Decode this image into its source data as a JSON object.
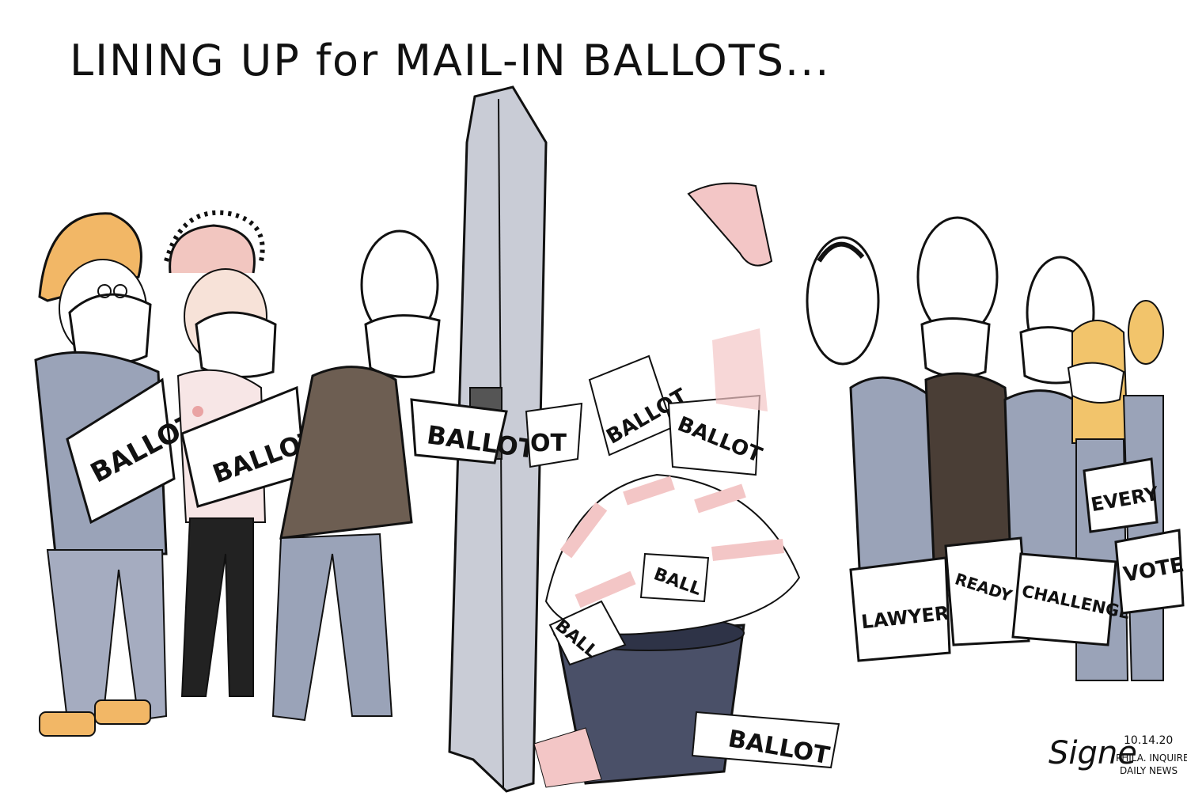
{
  "caption": "LINING UP for MAIL-IN BALLOTS...",
  "voter_signs": [
    "BALLOT",
    "BALLOT",
    "BALLOT"
  ],
  "flying_ballots": [
    "BALLOT",
    "BALLOT",
    "BALLOT"
  ],
  "bin_ballots": [
    "BALLOT",
    "BALL",
    "BALL",
    "BALLOT"
  ],
  "lawyer_signs": [
    "LAWYERS",
    "READY TO...",
    "CHALLENGE",
    "EVERY",
    "VOTE"
  ],
  "signature": "Signe",
  "date": "10.14.20",
  "publication": [
    "PHILA. INQUIRER",
    "DAILY NEWS"
  ],
  "colors": {
    "ink": "#111111",
    "shirt": "#9aa3b8",
    "hardhat": "#f2b766",
    "bin": "#4a5068",
    "dropbox": "#c9ccd6",
    "ballot_pink": "#f3c6c6"
  }
}
